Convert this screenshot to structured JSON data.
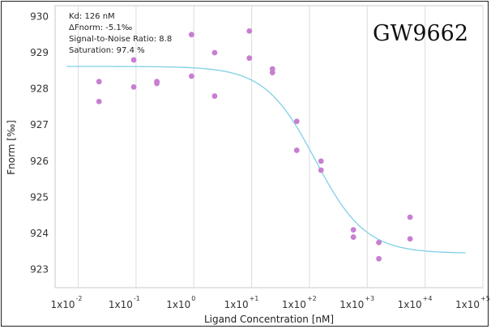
{
  "chart_data": {
    "type": "scatter",
    "title": "GW9662",
    "xlabel": "Ligand Concentration [nM]",
    "ylabel": "Fnorm [‰]",
    "x_scale": "log10",
    "xlim_log10": [
      -2.4,
      5
    ],
    "ylim": [
      922.5,
      930.3
    ],
    "y_ticks": [
      923,
      924,
      925,
      926,
      927,
      928,
      929,
      930
    ],
    "x_ticks": [
      {
        "base": "1x10",
        "exp": "-2",
        "log": -2
      },
      {
        "base": "1x10",
        "exp": "-1",
        "log": -1
      },
      {
        "base": "1x10",
        "exp": "0",
        "log": 0
      },
      {
        "base": "1x10",
        "exp": "+1",
        "log": 1
      },
      {
        "base": "1x10",
        "exp": "+2",
        "log": 2
      },
      {
        "base": "1x10",
        "exp": "+3",
        "log": 3
      },
      {
        "base": "1x10",
        "exp": "+4",
        "log": 4
      },
      {
        "base": "1x10",
        "exp": "+5",
        "log": 5
      }
    ],
    "gridlines": "vertical",
    "stats": [
      "Kd: 126 nM",
      "ΔFnorm: -5.1‰",
      "Signal-to-Noise Ratio: 8.8",
      "Saturation: 97.4 %"
    ],
    "series": [
      {
        "name": "Measured",
        "kind": "points",
        "color": "#c77fd1",
        "points": [
          {
            "log_x": -1.64,
            "y": 928.2
          },
          {
            "log_x": -1.64,
            "y": 927.65
          },
          {
            "log_x": -1.04,
            "y": 928.8
          },
          {
            "log_x": -1.04,
            "y": 928.05
          },
          {
            "log_x": -0.64,
            "y": 928.2
          },
          {
            "log_x": -0.64,
            "y": 928.15
          },
          {
            "log_x": -0.04,
            "y": 929.5
          },
          {
            "log_x": -0.04,
            "y": 928.35
          },
          {
            "log_x": 0.36,
            "y": 929.0
          },
          {
            "log_x": 0.36,
            "y": 927.8
          },
          {
            "log_x": 0.96,
            "y": 929.6
          },
          {
            "log_x": 0.96,
            "y": 928.85
          },
          {
            "log_x": 1.36,
            "y": 928.55
          },
          {
            "log_x": 1.36,
            "y": 928.45
          },
          {
            "log_x": 1.78,
            "y": 927.1
          },
          {
            "log_x": 1.78,
            "y": 926.3
          },
          {
            "log_x": 2.2,
            "y": 926.0
          },
          {
            "log_x": 2.2,
            "y": 925.75
          },
          {
            "log_x": 2.76,
            "y": 924.1
          },
          {
            "log_x": 2.76,
            "y": 923.9
          },
          {
            "log_x": 3.2,
            "y": 923.75
          },
          {
            "log_x": 3.2,
            "y": 923.3
          },
          {
            "log_x": 3.74,
            "y": 924.45
          },
          {
            "log_x": 3.74,
            "y": 923.85
          }
        ]
      },
      {
        "name": "Fit",
        "kind": "curve",
        "color": "#7fd0e6",
        "model": "sigmoid",
        "top": 928.62,
        "bottom": 923.45,
        "kd_log": 2.1,
        "slope": 1.0,
        "log_from": -2.2,
        "log_to": 4.7
      }
    ]
  }
}
